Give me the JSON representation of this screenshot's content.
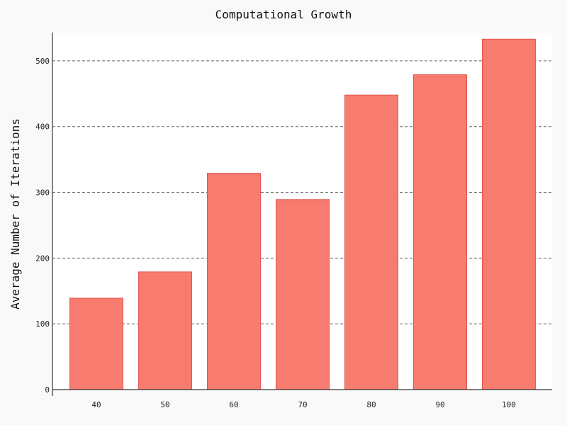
{
  "chart_data": {
    "type": "bar",
    "title": "Computational Growth",
    "xlabel": "",
    "ylabel": "Average Number of Iterations",
    "categories": [
      "40",
      "50",
      "60",
      "70",
      "80",
      "90",
      "100"
    ],
    "values": [
      139,
      179,
      329,
      289,
      448,
      479,
      533
    ],
    "ylim": [
      0,
      543
    ],
    "yticks": [
      0,
      100,
      200,
      300,
      400,
      500
    ],
    "ytick_labels": [
      "0",
      "100",
      "200",
      "300",
      "400",
      "500"
    ],
    "grid": "horizontal-dashed",
    "legend": "none",
    "colors": {
      "bar_fill": "#f87b6f",
      "bar_edge": "#e0584c",
      "plot_background": "#ffffff",
      "figure_background": "#f9f9f9",
      "grid": "#666666",
      "axis": "#333333"
    }
  }
}
